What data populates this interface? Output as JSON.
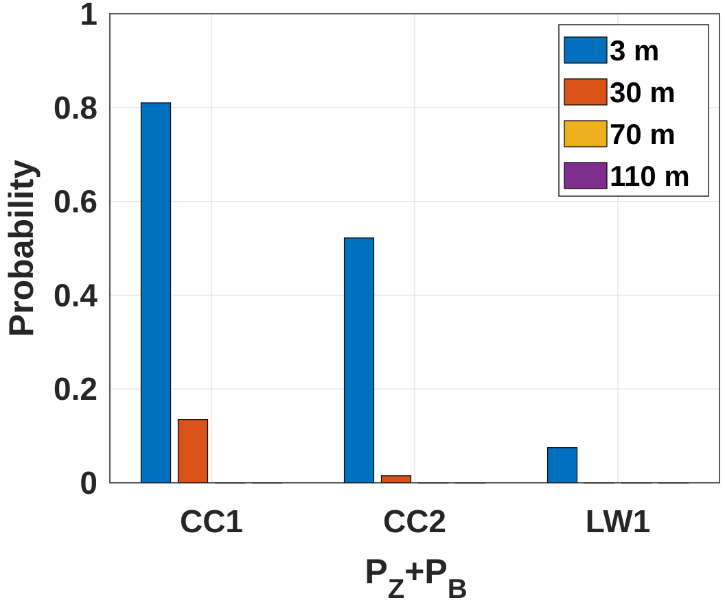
{
  "chart_data": {
    "type": "bar",
    "title": "",
    "categories": [
      "CC1",
      "CC2",
      "LW1"
    ],
    "series": [
      {
        "name": "3 m",
        "color": "#0072BD",
        "values": [
          0.81,
          0.522,
          0.075
        ]
      },
      {
        "name": "30 m",
        "color": "#D95319",
        "values": [
          0.135,
          0.015,
          0.0
        ]
      },
      {
        "name": "70 m",
        "color": "#EDB120",
        "values": [
          0.0,
          0.0,
          0.0
        ]
      },
      {
        "name": "110 m",
        "color": "#7E2F8E",
        "values": [
          0.0,
          0.0,
          0.0
        ]
      }
    ],
    "ylabel": "Probability",
    "xlabel": {
      "main": "P",
      "sub1": "Z",
      "plus": "+",
      "main2": "P",
      "sub2": "B"
    },
    "ylim": [
      0,
      1
    ],
    "yticks": [
      "0",
      "0.2",
      "0.4",
      "0.6",
      "0.8",
      "1"
    ],
    "ytick_values": [
      0,
      0.2,
      0.4,
      0.6,
      0.8,
      1
    ],
    "grid": true,
    "legend_position": "top-right"
  }
}
